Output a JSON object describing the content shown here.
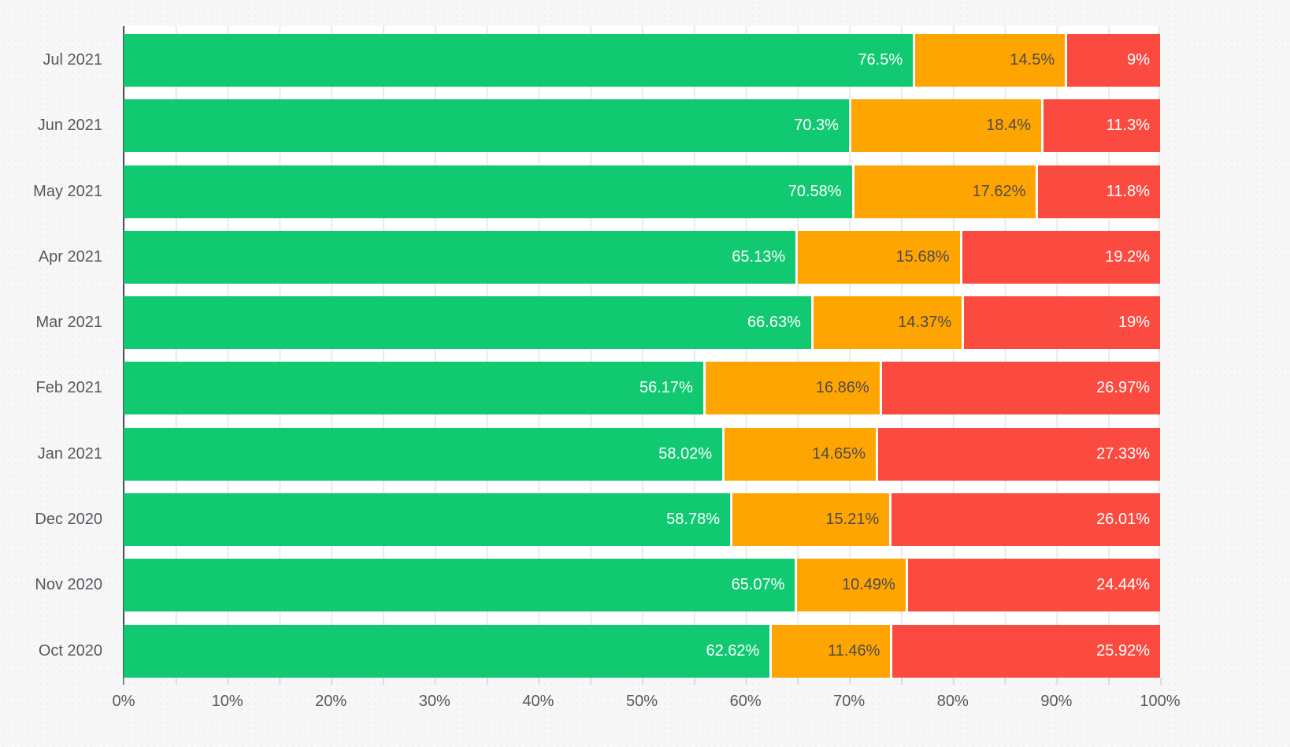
{
  "chart_data": {
    "type": "bar",
    "orientation": "horizontal",
    "stacked": true,
    "unit": "percent",
    "title": "",
    "categories": [
      "Jul 2021",
      "Jun 2021",
      "May 2021",
      "Apr 2021",
      "Mar 2021",
      "Feb 2021",
      "Jan 2021",
      "Dec 2020",
      "Nov 2020",
      "Oct 2020"
    ],
    "series": [
      {
        "name": "green",
        "color": "#11c970",
        "label_color": "#ffffff",
        "values": [
          76.5,
          70.3,
          70.58,
          65.13,
          66.63,
          56.17,
          58.02,
          58.78,
          65.07,
          62.62
        ],
        "labels": [
          "76.5%",
          "70.3%",
          "70.58%",
          "65.13%",
          "66.63%",
          "56.17%",
          "58.02%",
          "58.78%",
          "65.07%",
          "62.62%"
        ]
      },
      {
        "name": "orange",
        "color": "#ffa502",
        "label_color": "#4b4b4b",
        "values": [
          14.5,
          18.4,
          17.62,
          15.68,
          14.37,
          16.86,
          14.65,
          15.21,
          10.49,
          11.46
        ],
        "labels": [
          "14.5%",
          "18.4%",
          "17.62%",
          "15.68%",
          "14.37%",
          "16.86%",
          "14.65%",
          "15.21%",
          "10.49%",
          "11.46%"
        ]
      },
      {
        "name": "red",
        "color": "#fb4b40",
        "label_color": "#ffffff",
        "values": [
          9,
          11.3,
          11.8,
          19.2,
          19,
          26.97,
          27.33,
          26.01,
          24.44,
          25.92
        ],
        "labels": [
          "9%",
          "11.3%",
          "11.8%",
          "19.2%",
          "19%",
          "26.97%",
          "27.33%",
          "26.01%",
          "24.44%",
          "25.92%"
        ]
      }
    ],
    "x_axis": {
      "min": 0,
      "max": 100,
      "tick_labels": [
        "0%",
        "10%",
        "20%",
        "30%",
        "40%",
        "50%",
        "60%",
        "70%",
        "80%",
        "90%",
        "100%"
      ],
      "minor_tick_step_percent": 5
    },
    "legend": "none",
    "grid": "vertical gridlines every 5%"
  },
  "colors": {
    "page_background": "#f7f7f8",
    "plot_background": "#ffffff",
    "gridline": "#e9eaeb",
    "axis_line": "#50545a",
    "minor_tick": "#d9dbde",
    "axis_label_text": "#55585e"
  }
}
